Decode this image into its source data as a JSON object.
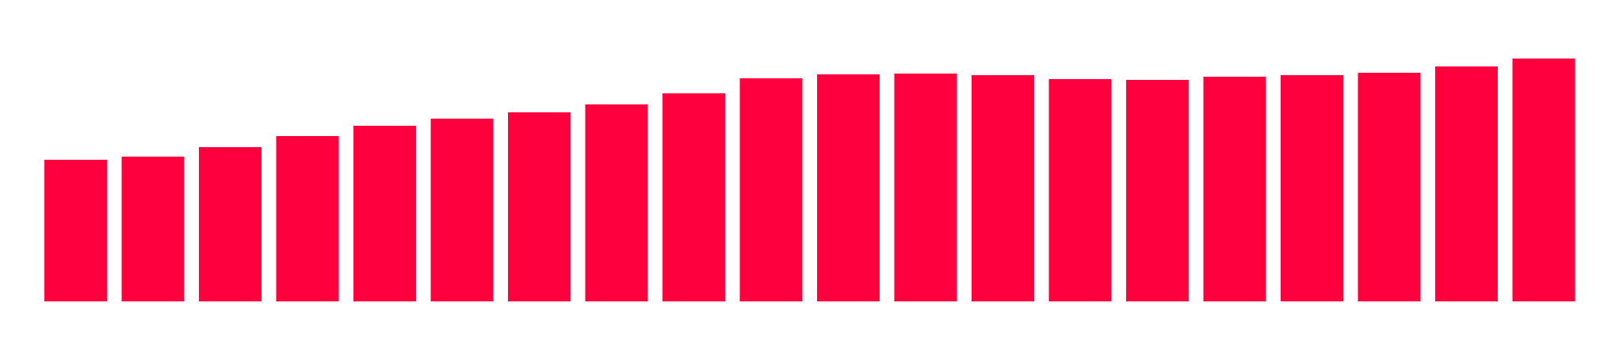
{
  "chart_data": {
    "type": "bar",
    "categories": [
      null,
      null,
      null,
      null,
      null,
      null,
      null,
      null,
      null,
      null,
      null,
      null,
      null,
      null,
      null,
      null,
      null,
      null,
      null,
      null
    ],
    "values": [
      179,
      183,
      195,
      209,
      222,
      231,
      239,
      249,
      263,
      282,
      287,
      288,
      286,
      281,
      280,
      284,
      286,
      289,
      297,
      307
    ],
    "color": "#ff003c",
    "ylim": [
      0,
      381
    ]
  }
}
